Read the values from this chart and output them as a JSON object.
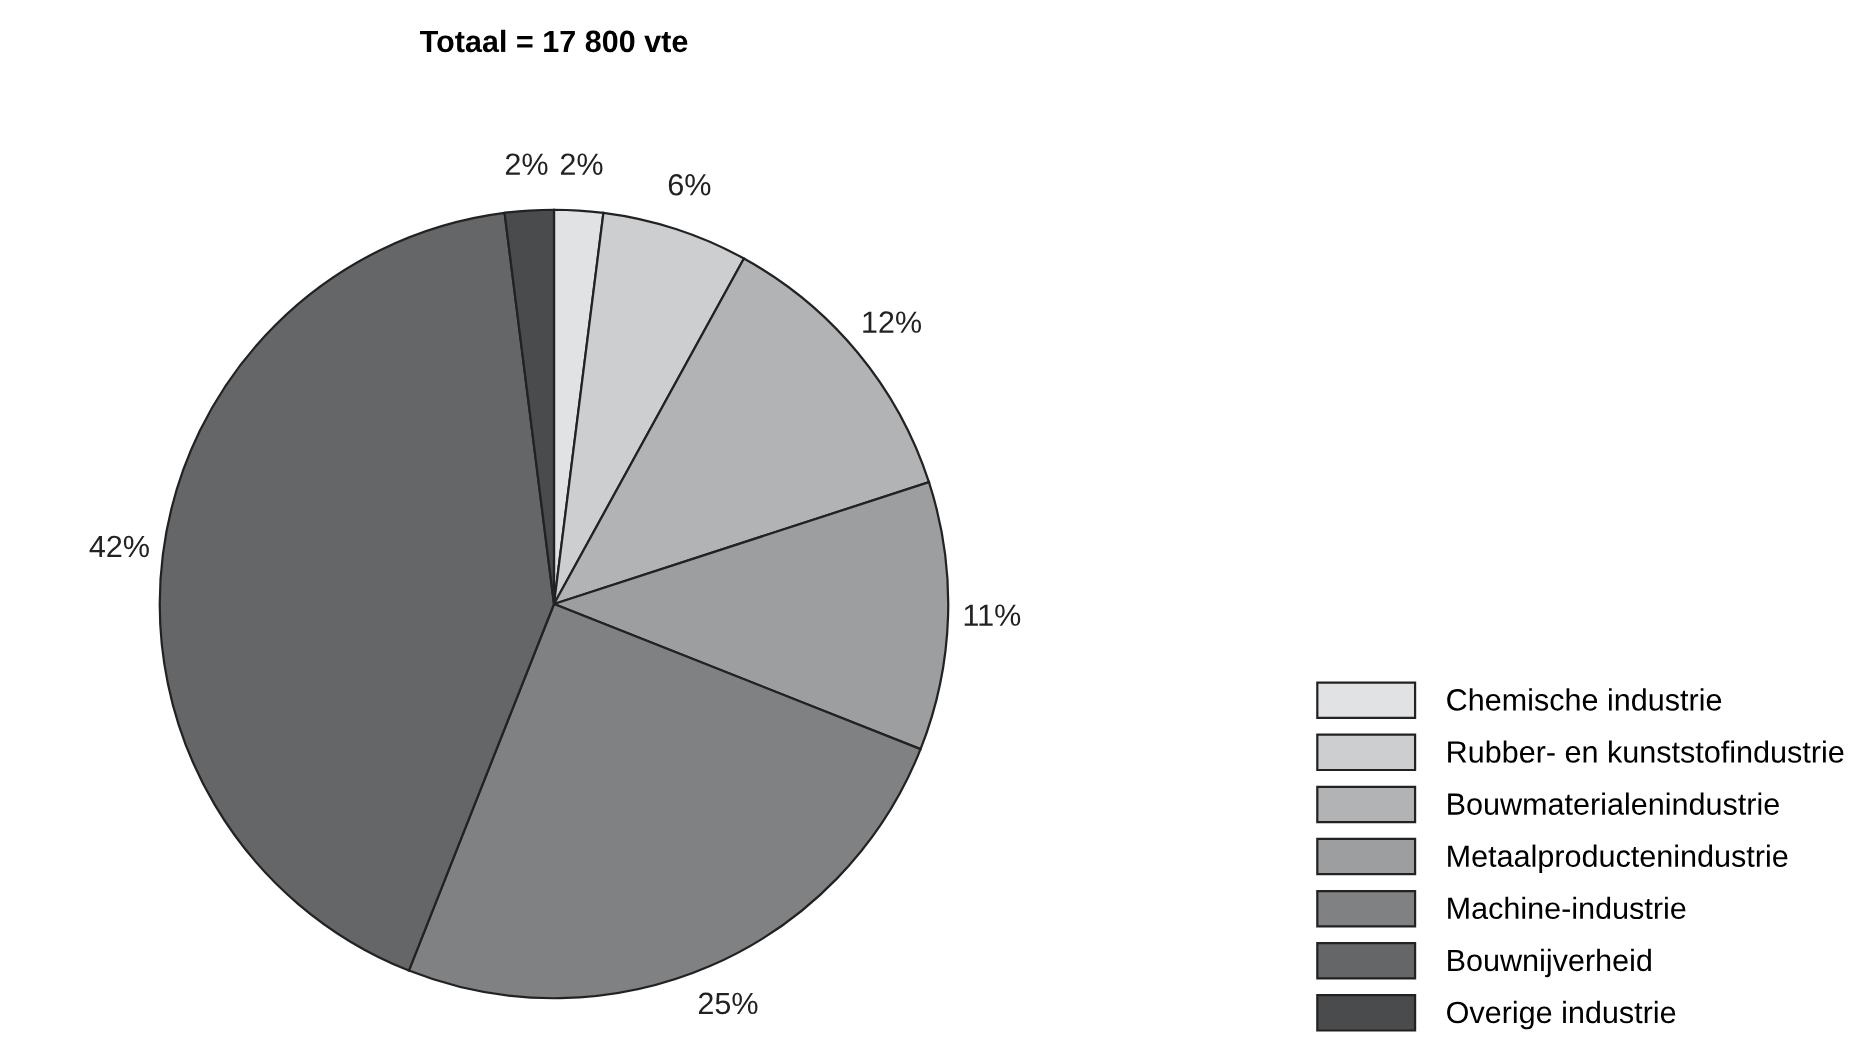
{
  "chart_data": {
    "type": "pie",
    "title": "Totaal = 17 800 vte",
    "categories": [
      "Chemische industrie",
      "Rubber- en kunststofindustrie",
      "Bouwmaterialenindustrie",
      "Metaalproductenindustrie",
      "Machine-industrie",
      "Bouwnijverheid",
      "Overige industrie"
    ],
    "values": [
      2,
      6,
      12,
      11,
      25,
      42,
      2
    ],
    "value_labels": [
      "2%",
      "6%",
      "12%",
      "11%",
      "25%",
      "42%",
      "2%"
    ],
    "colors": [
      "#e1e2e4",
      "#cdcecf",
      "#b2b3b5",
      "#9d9ea0",
      "#808183",
      "#656668",
      "#4a4b4d"
    ],
    "legend": "bottom right"
  }
}
